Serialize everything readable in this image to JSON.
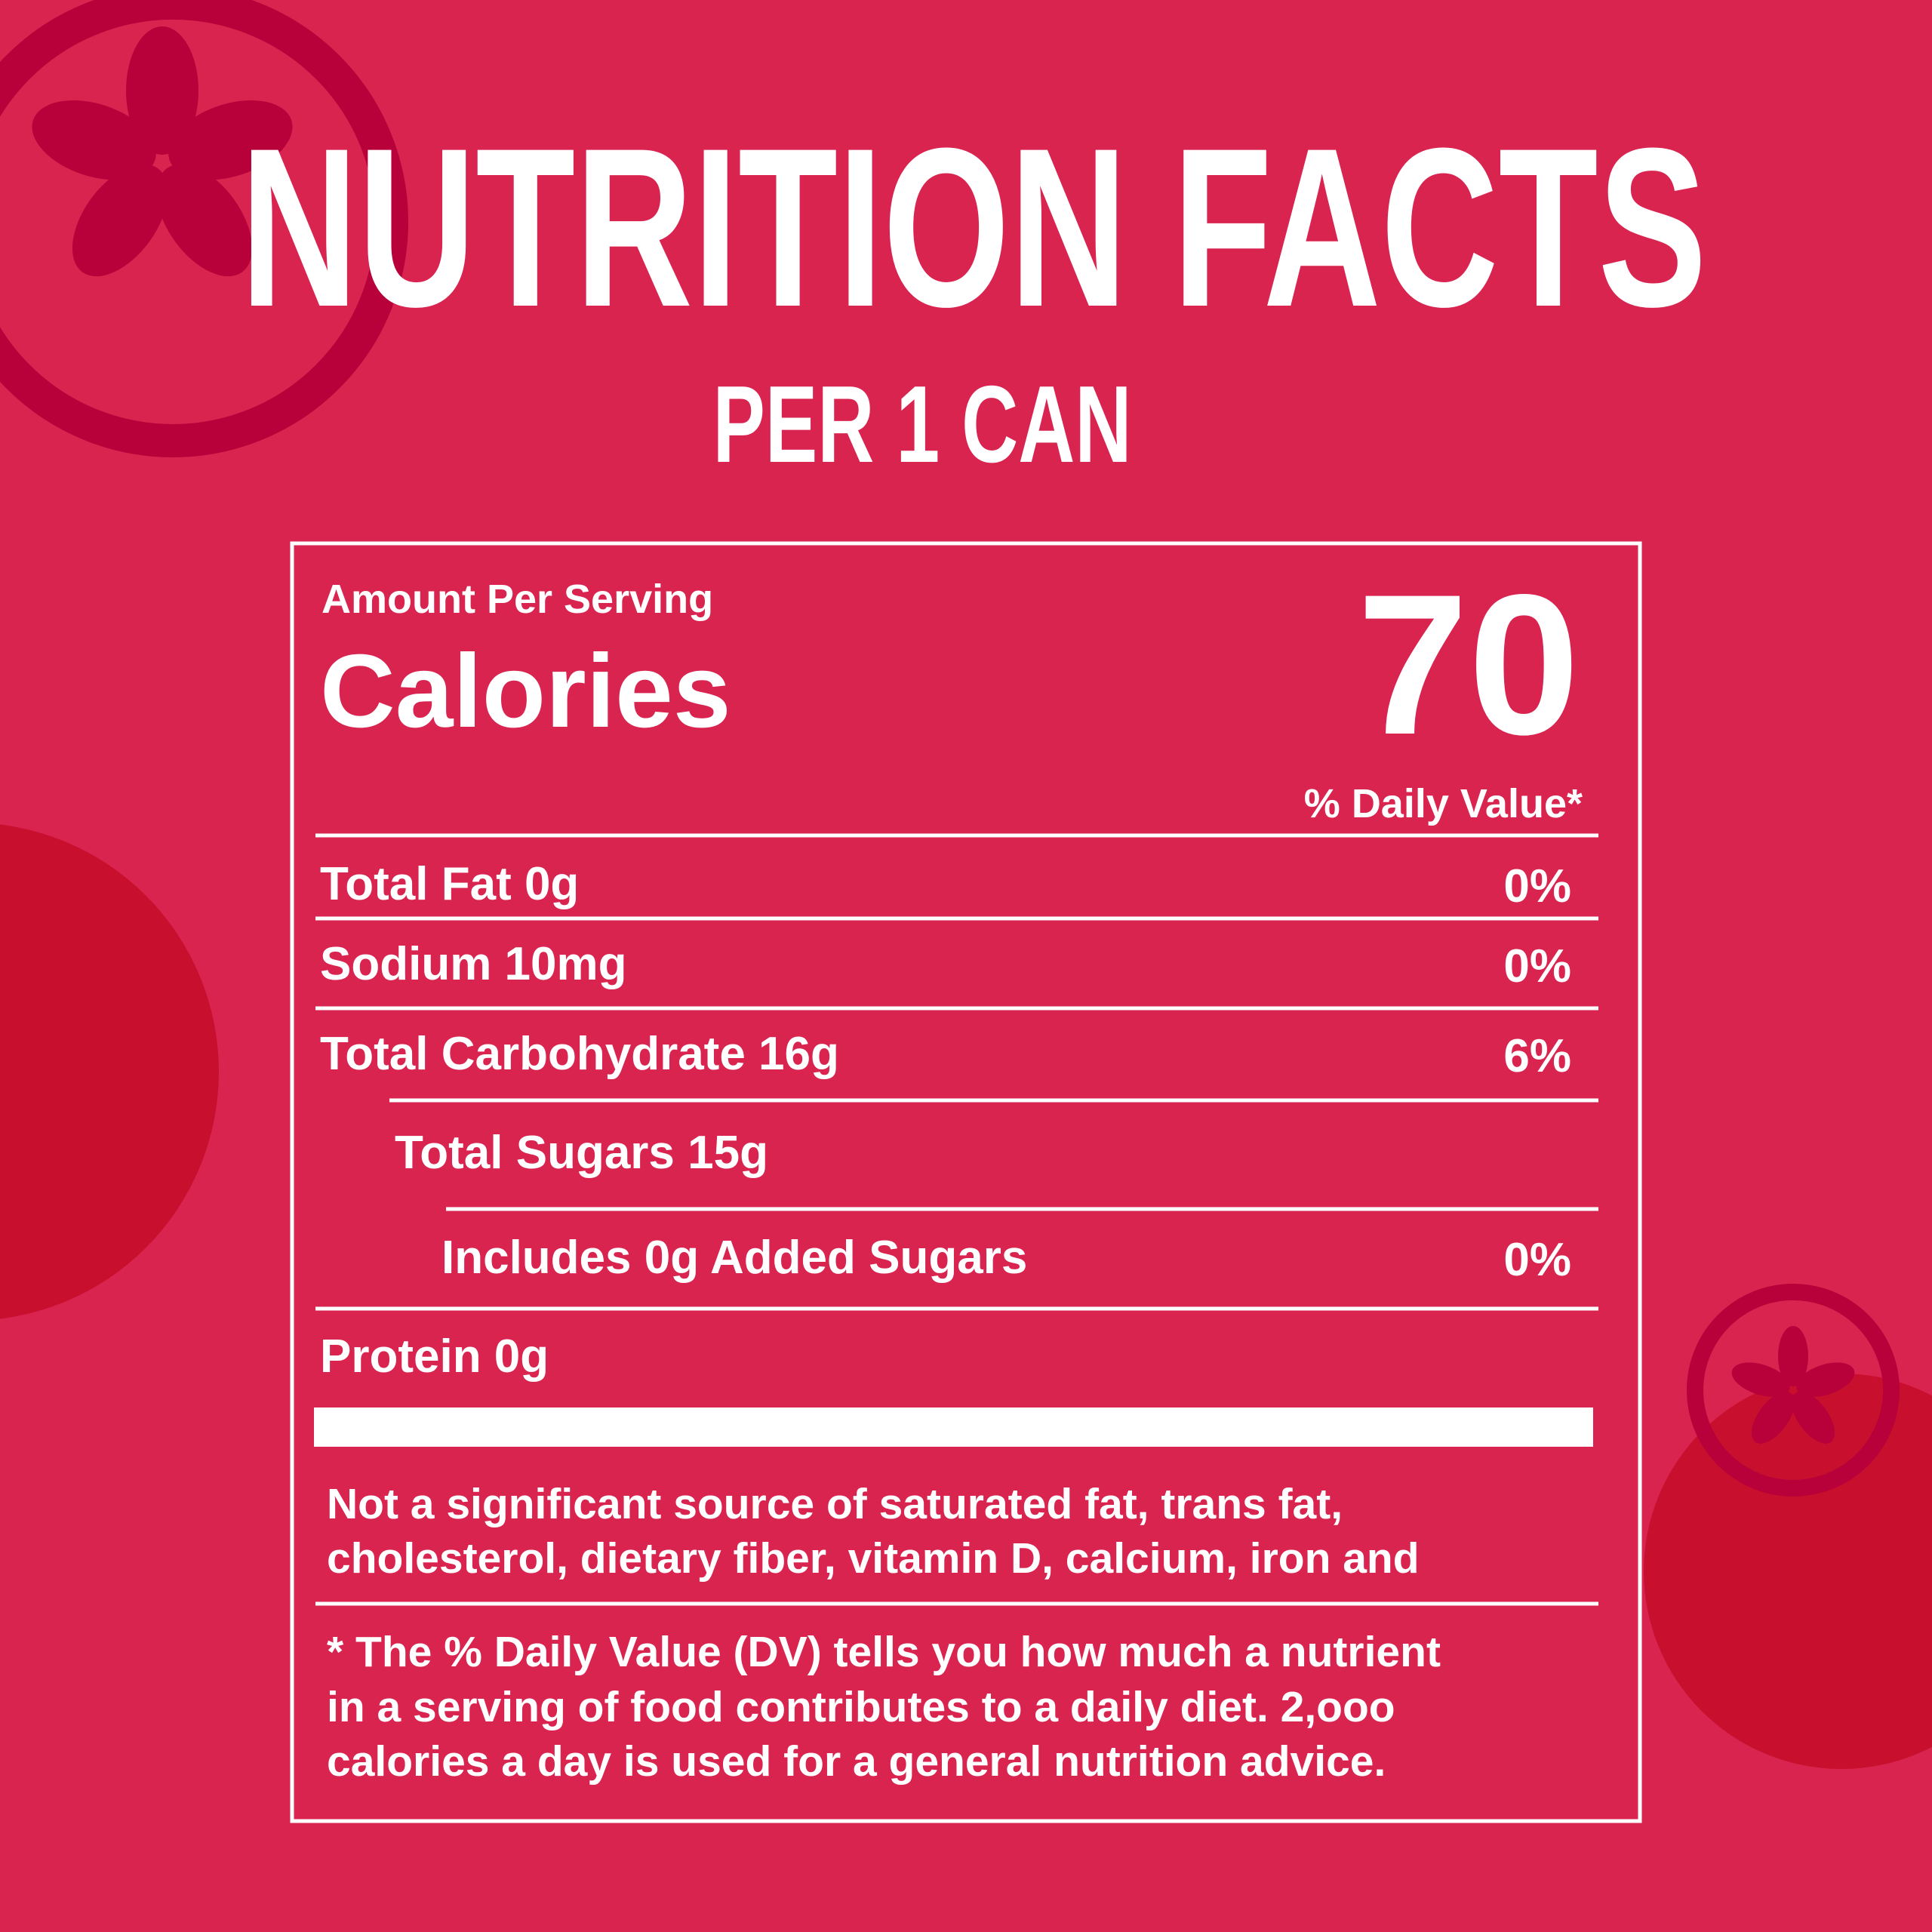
{
  "header": {
    "title": "NUTRITION FACTS",
    "subtitle": "PER 1 CAN"
  },
  "label": {
    "amount_per_serving": "Amount Per Serving",
    "calories_label": "Calories",
    "calories_value": "70",
    "daily_value_header": "% Daily Value*",
    "rows": [
      {
        "label": "Total Fat 0g",
        "dv": "0%"
      },
      {
        "label": "Sodium 10mg",
        "dv": "0%"
      },
      {
        "label": "Total Carbohydrate 16g",
        "dv": "6%"
      },
      {
        "label": "Total Sugars 15g"
      },
      {
        "label": "Includes 0g Added Sugars",
        "dv": "0%"
      },
      {
        "label": "Protein 0g"
      }
    ],
    "note_lines": [
      "Not a significant source of saturated fat, trans fat,",
      "cholesterol, dietary fiber, vitamin D, calcium, iron and"
    ],
    "footnote_lines": [
      "* The % Daily Value (DV) tells  you how much a nutrient",
      "in a serving of food contributes to a daily diet. 2,ooo",
      "calories a day is used for a general nutrition advice."
    ]
  }
}
